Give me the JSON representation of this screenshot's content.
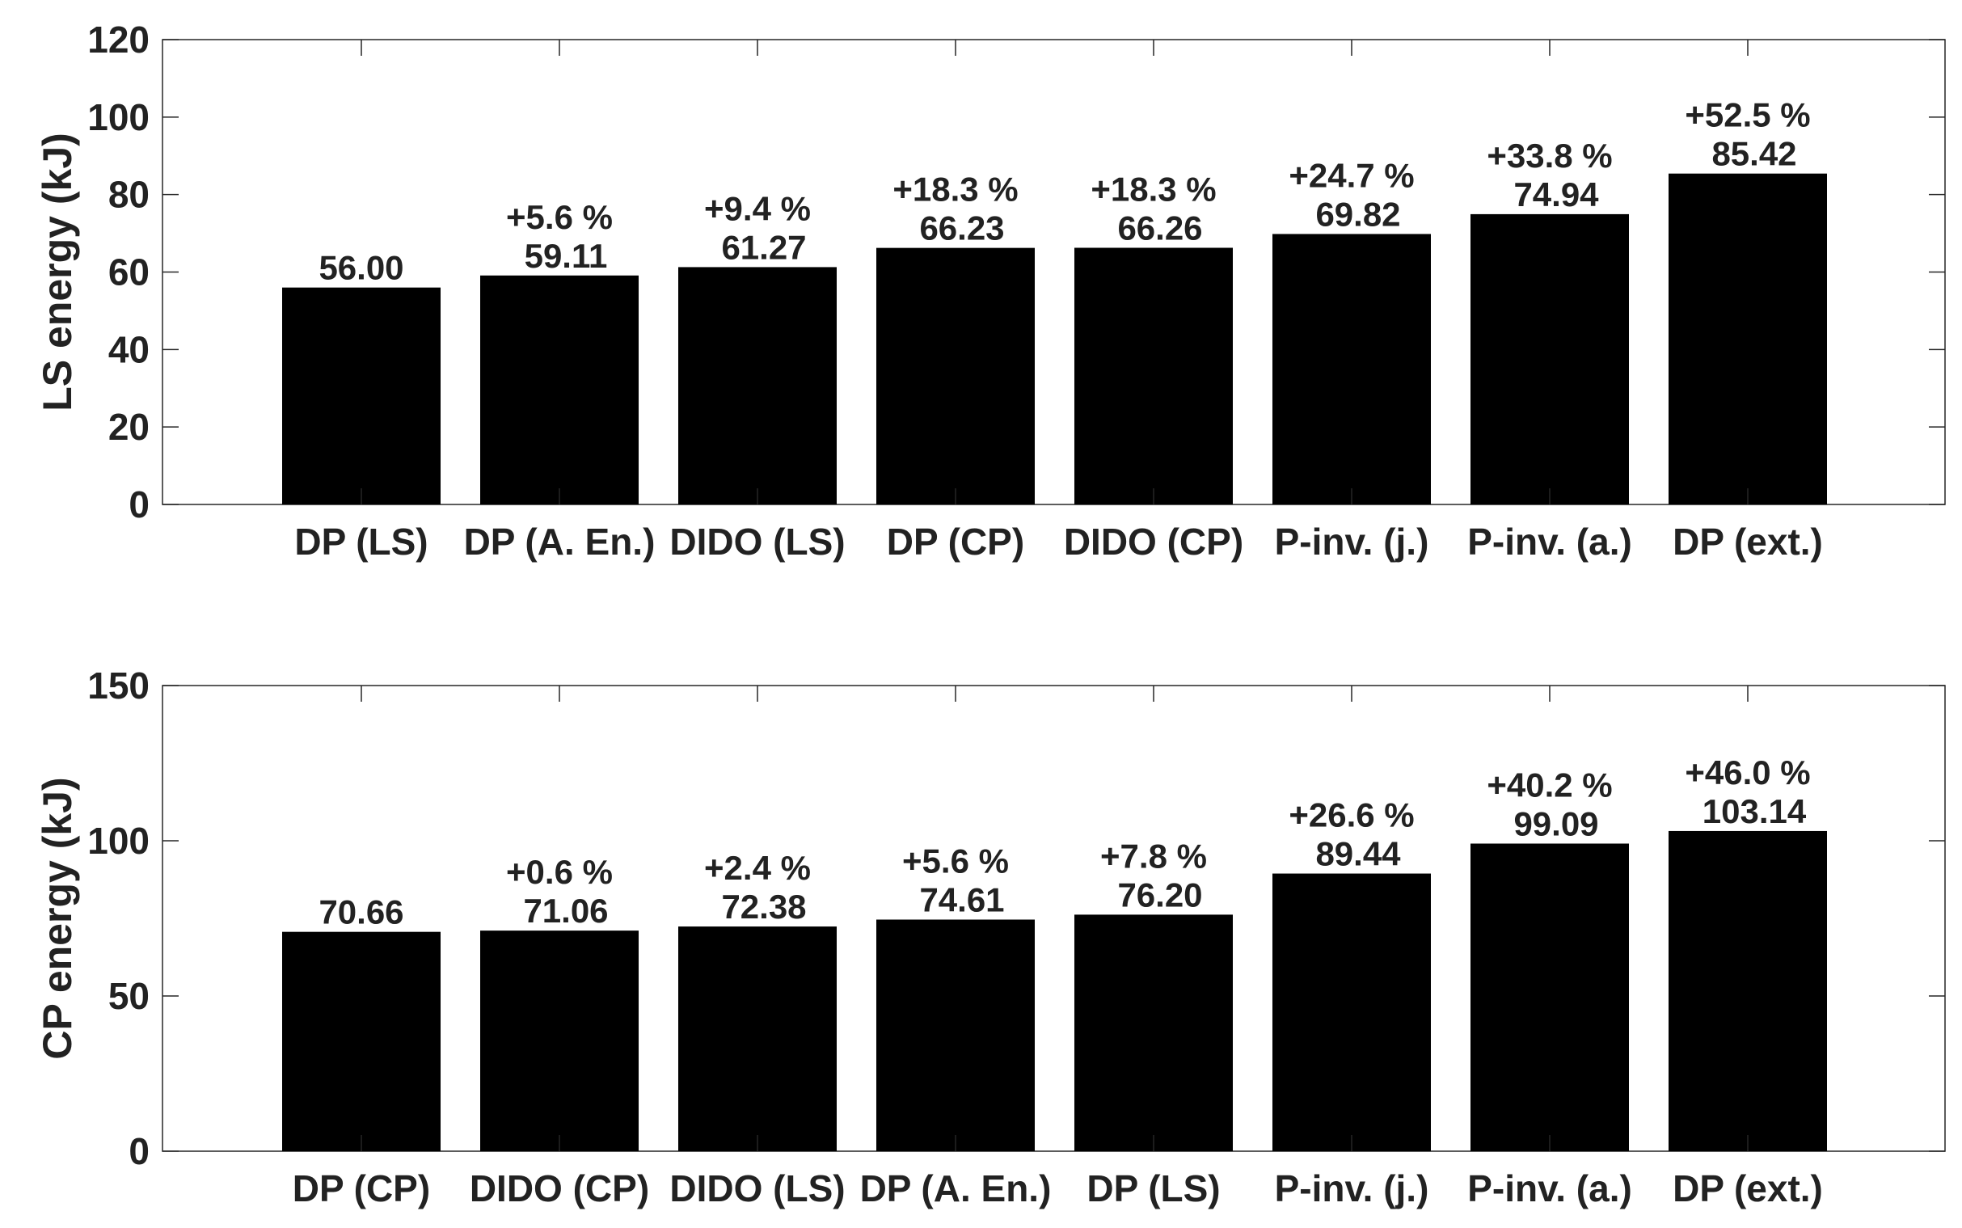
{
  "chart_data": [
    {
      "type": "bar",
      "title": "",
      "xlabel": "",
      "ylabel": "LS energy (kJ)",
      "ylim": [
        0,
        120
      ],
      "yticks": [
        0,
        20,
        40,
        60,
        80,
        100,
        120
      ],
      "grid": false,
      "bar_color": "#000000",
      "categories": [
        "DP (LS)",
        "DP (A. En.)",
        "DIDO (LS)",
        "DP (CP)",
        "DIDO (CP)",
        "P-inv. (j.)",
        "P-inv. (a.)",
        "DP (ext.)"
      ],
      "values": [
        56.0,
        59.11,
        61.27,
        66.23,
        66.26,
        69.82,
        74.94,
        85.42
      ],
      "value_labels": [
        "56.00",
        "59.11",
        "61.27",
        "66.23",
        "66.26",
        "69.82",
        "74.94",
        "85.42"
      ],
      "percent_labels": [
        "",
        "+5.6 %",
        "+9.4 %",
        "+18.3 %",
        "+18.3 %",
        "+24.7 %",
        "+33.8 %",
        "+52.5 %"
      ]
    },
    {
      "type": "bar",
      "title": "",
      "xlabel": "",
      "ylabel": "CP energy (kJ)",
      "ylim": [
        0,
        150
      ],
      "yticks": [
        0,
        50,
        100,
        150
      ],
      "grid": false,
      "bar_color": "#000000",
      "categories": [
        "DP (CP)",
        "DIDO (CP)",
        "DIDO (LS)",
        "DP (A. En.)",
        "DP (LS)",
        "P-inv. (j.)",
        "P-inv. (a.)",
        "DP (ext.)"
      ],
      "values": [
        70.66,
        71.06,
        72.38,
        74.61,
        76.2,
        89.44,
        99.09,
        103.14
      ],
      "value_labels": [
        "70.66",
        "71.06",
        "72.38",
        "74.61",
        "76.20",
        "89.44",
        "99.09",
        "103.14"
      ],
      "percent_labels": [
        "",
        "+0.6 %",
        "+2.4 %",
        "+5.6 %",
        "+7.8 %",
        "+26.6 %",
        "+40.2 %",
        "+46.0 %"
      ]
    }
  ]
}
